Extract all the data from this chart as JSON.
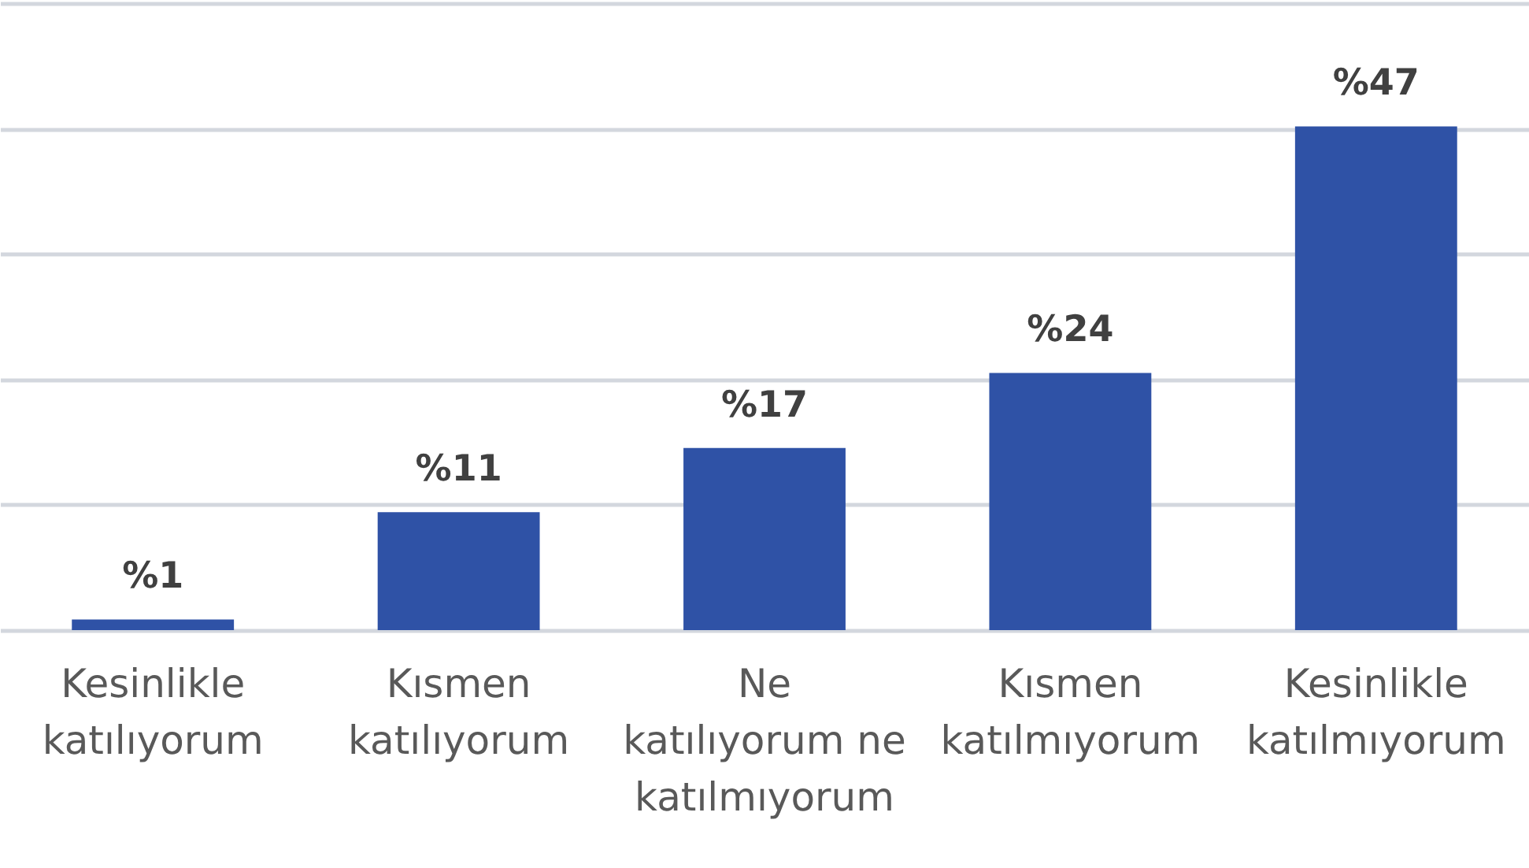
{
  "chart_data": {
    "type": "bar",
    "categories": [
      "Kesinlikle katılıyorum",
      "Kısmen katılıyorum",
      "Ne katılıyorum ne katılmıyorum",
      "Kısmen katılmıyorum",
      "Kesinlikle katılmıyorum"
    ],
    "values": [
      1,
      11,
      17,
      24,
      47
    ],
    "color": "#2f52a6",
    "value_labels": [
      "%1",
      "%11",
      "%17",
      "%24",
      "%47"
    ],
    "ylim": [
      0,
      58.5
    ],
    "yticks": [
      {
        "value": 0,
        "label": null
      },
      {
        "value": 11.7,
        "label": null
      },
      {
        "value": 23.4,
        "label": null
      },
      {
        "value": 35.1,
        "label": null
      },
      {
        "value": 46.8,
        "label": null
      },
      {
        "value": 58.5,
        "label": null
      }
    ],
    "grid": "y",
    "tick_labels": "x"
  }
}
